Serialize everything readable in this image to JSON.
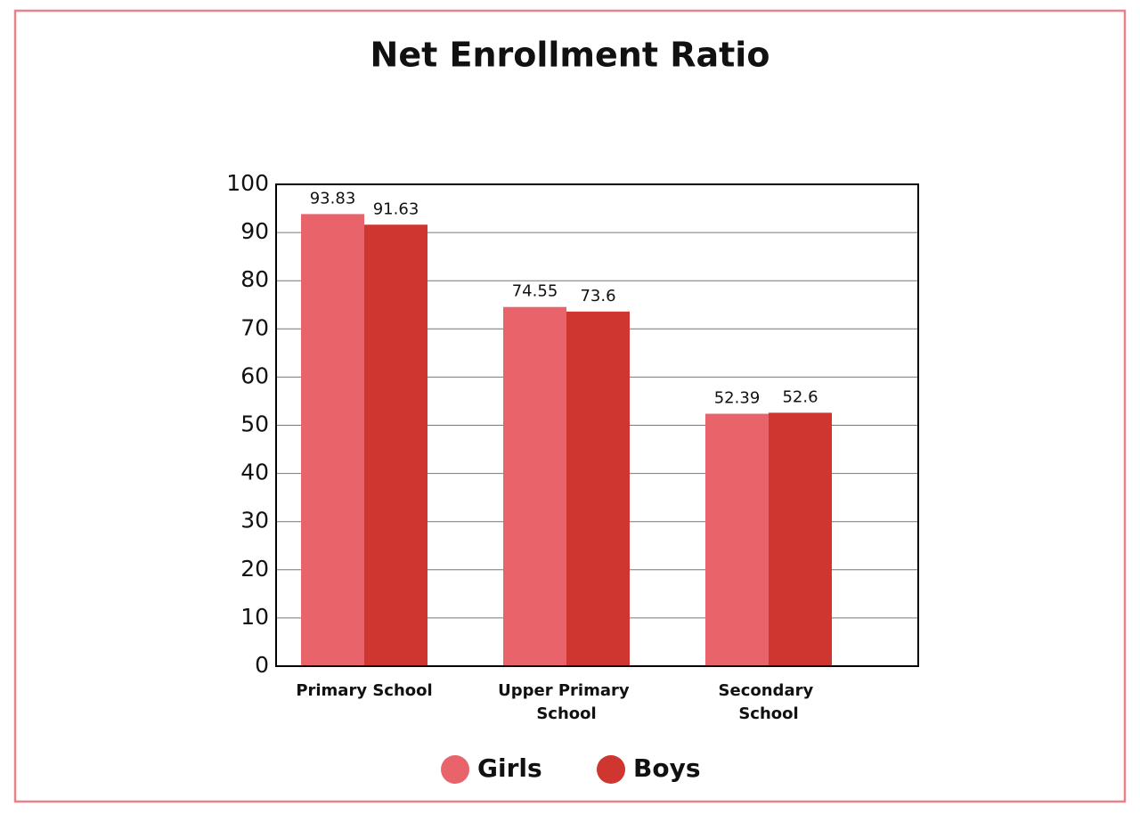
{
  "chart_data": {
    "type": "bar",
    "title": "Net Enrollment Ratio",
    "categories": [
      "Primary School",
      "Upper Primary School",
      "Secondary School"
    ],
    "series": [
      {
        "name": "Girls",
        "color": "#e8646a",
        "values": [
          93.83,
          74.55,
          52.39
        ]
      },
      {
        "name": "Boys",
        "color": "#cf3630",
        "values": [
          91.63,
          73.6,
          52.6
        ]
      }
    ],
    "ylim": [
      0,
      100
    ],
    "yticks": [
      0,
      10,
      20,
      30,
      40,
      50,
      60,
      70,
      80,
      90,
      100
    ],
    "grid": true,
    "legend": "bottom"
  }
}
